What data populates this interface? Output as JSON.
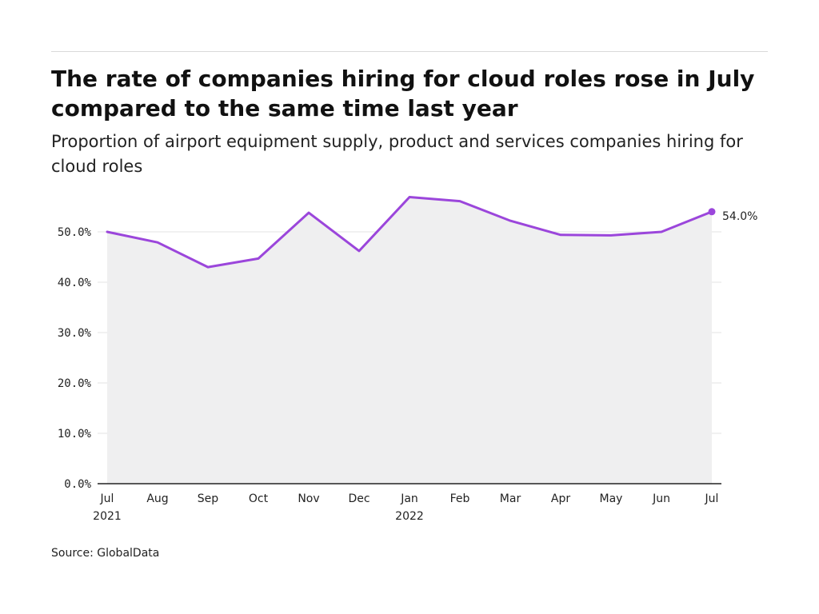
{
  "header": {
    "title": "The rate of companies hiring for cloud roles rose in July compared to the same time last year",
    "subtitle": "Proportion of airport equipment supply, product and services companies hiring for cloud roles"
  },
  "footer": {
    "source": "Source: GlobalData"
  },
  "chart_data": {
    "type": "area",
    "title": "The rate of companies hiring for cloud roles rose in July compared to the same time last year",
    "subtitle": "Proportion of airport equipment supply, product and services companies hiring for cloud roles",
    "categories": [
      "Jul",
      "Aug",
      "Sep",
      "Oct",
      "Nov",
      "Dec",
      "Jan",
      "Feb",
      "Mar",
      "Apr",
      "May",
      "Jun",
      "Jul"
    ],
    "category_sublabels": [
      "2021",
      "",
      "",
      "",
      "",
      "",
      "2022",
      "",
      "",
      "",
      "",
      "",
      ""
    ],
    "series": [
      {
        "values": [
          50.0,
          47.9,
          43.0,
          44.7,
          53.8,
          46.2,
          56.9,
          56.1,
          52.2,
          49.4,
          49.3,
          50.0,
          54.0
        ]
      }
    ],
    "yticks": [
      0,
      10,
      20,
      30,
      40,
      50
    ],
    "ytick_labels": [
      "0.0%",
      "10.0%",
      "20.0%",
      "30.0%",
      "40.0%",
      "50.0%"
    ],
    "ylim": [
      0,
      60
    ],
    "grid": true,
    "end_label": "54.0%",
    "line_color": "#9b46db",
    "fill_color": "#efeff0",
    "grid_color": "#e3e3e3",
    "axis_color": "#222222"
  }
}
